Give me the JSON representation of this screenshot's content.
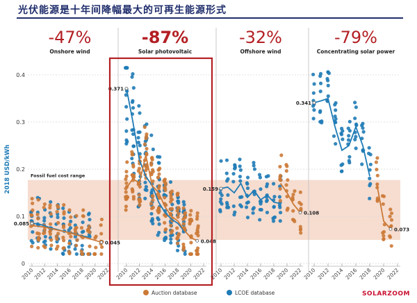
{
  "heading": "光伏能源是十年间降幅最大的可再生能源形式",
  "watermark": "SOLARZOOM",
  "colors": {
    "auction": "#cc7a37",
    "lcoe": "#1f7bb6",
    "fossil_band": "#f6ddd0",
    "highlight_box": "#b31f24",
    "percent": "#b31f24"
  },
  "chart_data": {
    "type": "scatter",
    "ylabel": "2018 USD/kWh",
    "ylim": [
      0,
      0.42
    ],
    "yticks": [
      "0",
      "0.1",
      "0.2",
      "0.3",
      "0.4"
    ],
    "grid": true,
    "legend_position": "bottom-center",
    "legend": [
      "Auction database",
      "LCOE database"
    ],
    "fossil_fuel_range": {
      "label": "Fossil fuel cost range",
      "low": 0.05,
      "high": 0.177
    },
    "panels": [
      {
        "name": "Onshore wind",
        "change": "-47%",
        "xticks": [
          "2010",
          "2012",
          "2014",
          "2016",
          "2018",
          "2020",
          "2022"
        ],
        "series": [
          {
            "name": "LCOE database",
            "x": [
              2010,
              2011,
              2012,
              2013,
              2014,
              2015,
              2016,
              2017,
              2018,
              2019
            ],
            "values": [
              0.085,
              0.084,
              0.08,
              0.075,
              0.072,
              0.068,
              0.066,
              0.062,
              0.058,
              0.056
            ]
          },
          {
            "name": "Auction database",
            "x": [
              2010,
              2011,
              2012,
              2013,
              2014,
              2015,
              2016,
              2017,
              2018,
              2019,
              2020,
              2021
            ],
            "values": [
              0.08,
              0.079,
              0.077,
              0.074,
              0.071,
              0.068,
              0.065,
              0.061,
              0.057,
              0.053,
              0.049,
              0.045
            ]
          }
        ],
        "labels": [
          {
            "text": "0.085",
            "x": 2010,
            "y": 0.085
          },
          {
            "text": "0.045",
            "x": 2021,
            "y": 0.045
          }
        ]
      },
      {
        "name": "Solar photovoltaic",
        "change": "-87%",
        "highlighted": true,
        "xticks": [
          "2010",
          "2012",
          "2014",
          "2016",
          "2018",
          "2020",
          "2022"
        ],
        "series": [
          {
            "name": "LCOE database",
            "x": [
              2010,
              2011,
              2012,
              2013,
              2014,
              2015,
              2016,
              2017,
              2018,
              2019
            ],
            "values": [
              0.371,
              0.3,
              0.22,
              0.185,
              0.165,
              0.13,
              0.108,
              0.094,
              0.085,
              0.068
            ]
          },
          {
            "name": "Auction database",
            "x": [
              2010,
              2011,
              2012,
              2013,
              2014,
              2015,
              2016,
              2017,
              2018,
              2019,
              2020,
              2021
            ],
            "values": [
              0.16,
              0.18,
              0.17,
              0.23,
              0.165,
              0.15,
              0.12,
              0.1,
              0.09,
              0.07,
              0.055,
              0.048
            ]
          }
        ],
        "labels": [
          {
            "text": "0.371",
            "x": 2010,
            "y": 0.371
          },
          {
            "text": "0.048",
            "x": 2021,
            "y": 0.048
          }
        ]
      },
      {
        "name": "Offshore wind",
        "change": "-32%",
        "xticks": [
          "2010",
          "2012",
          "2014",
          "2016",
          "2018",
          "2020",
          "2022"
        ],
        "series": [
          {
            "name": "LCOE database",
            "x": [
              2010,
              2011,
              2012,
              2013,
              2014,
              2015,
              2016,
              2017,
              2018,
              2019
            ],
            "values": [
              0.159,
              0.162,
              0.15,
              0.17,
              0.14,
              0.155,
              0.135,
              0.145,
              0.13,
              0.127
            ]
          },
          {
            "name": "Auction database",
            "x": [
              2019,
              2020,
              2021,
              2022
            ],
            "values": [
              0.17,
              0.15,
              0.125,
              0.108
            ]
          }
        ],
        "labels": [
          {
            "text": "0.159",
            "x": 2010,
            "y": 0.159
          },
          {
            "text": "0.108",
            "x": 2022,
            "y": 0.108
          }
        ]
      },
      {
        "name": "Concentrating solar power",
        "change": "-79%",
        "xticks": [
          "2010",
          "2012",
          "2014",
          "2016",
          "2018",
          "2020",
          "2022"
        ],
        "series": [
          {
            "name": "LCOE database",
            "x": [
              2010,
              2011,
              2012,
              2013,
              2014,
              2015,
              2016,
              2017,
              2018
            ],
            "values": [
              0.341,
              0.345,
              0.35,
              0.29,
              0.24,
              0.25,
              0.29,
              0.25,
              0.185
            ]
          },
          {
            "name": "Auction database",
            "x": [
              2019,
              2020,
              2021
            ],
            "values": [
              0.17,
              0.09,
              0.073
            ]
          }
        ],
        "labels": [
          {
            "text": "0.341",
            "x": 2010,
            "y": 0.341
          },
          {
            "text": "0.073",
            "x": 2021,
            "y": 0.073
          }
        ]
      }
    ]
  }
}
